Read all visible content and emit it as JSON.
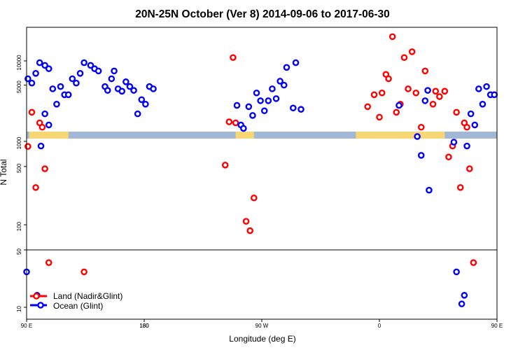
{
  "chart_data": {
    "type": "scatter",
    "title": "20N-25N October (Ver 8)   2014-09-06 to 2017-06-30",
    "xlabel": "Longitude (deg E)",
    "ylabel": "N Total",
    "x_scale": "longitude, 90 E to 180 (wrapping through 180 and 0)",
    "y_scale": "log",
    "x_ticks": [
      {
        "lon": 90,
        "label": "90 E"
      },
      {
        "lon": 180,
        "label": "180"
      },
      {
        "lon": -90,
        "label": "90 W"
      },
      {
        "lon": 0,
        "label": "0"
      },
      {
        "lon": 90,
        "label": "90 E",
        "wrap": true
      },
      {
        "lon": 180,
        "label": "180",
        "wrap": true
      }
    ],
    "y_ticks": [
      {
        "value": 10,
        "label": "10"
      },
      {
        "value": 50,
        "label": "50"
      },
      {
        "value": 100,
        "label": "100"
      },
      {
        "value": 500,
        "label": "500"
      },
      {
        "value": 1000,
        "label": "1000"
      },
      {
        "value": 5000,
        "label": "5000"
      },
      {
        "value": 10000,
        "label": "10000"
      }
    ],
    "colors": {
      "land": "#ff0000",
      "ocean": "#0000ff",
      "map_land": "#f7d773",
      "map_ocean": "#a3b8d4"
    },
    "legend": {
      "position": "bottom-left",
      "entries": [
        {
          "label": "Land (Nadir&Glint)",
          "color": "#ff0000"
        },
        {
          "label": "Ocean (Glint)",
          "color": "#0000ff"
        }
      ]
    },
    "series": [
      {
        "name": "Land (Nadir&Glint)",
        "color": "#ff0000",
        "points": [
          {
            "lon": 91,
            "n": 870
          },
          {
            "lon": 94,
            "n": 2300
          },
          {
            "lon": 97,
            "n": 280
          },
          {
            "lon": 100,
            "n": 1700
          },
          {
            "lon": 102,
            "n": 1500
          },
          {
            "lon": 104,
            "n": 470
          },
          {
            "lon": 107,
            "n": 35
          },
          {
            "lon": 134,
            "n": 27
          },
          {
            "lon": -118,
            "n": 520
          },
          {
            "lon": -115,
            "n": 1750
          },
          {
            "lon": -112,
            "n": 11000
          },
          {
            "lon": -110,
            "n": 1700
          },
          {
            "lon": -102,
            "n": 110
          },
          {
            "lon": -99,
            "n": 85
          },
          {
            "lon": -96,
            "n": 210
          },
          {
            "lon": -9,
            "n": 2700
          },
          {
            "lon": -4,
            "n": 3800
          },
          {
            "lon": 0,
            "n": 2000
          },
          {
            "lon": 2,
            "n": 4000
          },
          {
            "lon": 5,
            "n": 6800
          },
          {
            "lon": 7,
            "n": 6000
          },
          {
            "lon": 10,
            "n": 20000
          },
          {
            "lon": 13,
            "n": 2300
          },
          {
            "lon": 16,
            "n": 2900
          },
          {
            "lon": 19,
            "n": 11000
          },
          {
            "lon": 22,
            "n": 4500
          },
          {
            "lon": 25,
            "n": 13000
          },
          {
            "lon": 28,
            "n": 4000
          },
          {
            "lon": 32,
            "n": 1500
          },
          {
            "lon": 35,
            "n": 7500
          },
          {
            "lon": 41,
            "n": 2900
          },
          {
            "lon": 43,
            "n": 4200
          },
          {
            "lon": 46,
            "n": 3600
          },
          {
            "lon": 50,
            "n": 4200
          },
          {
            "lon": 53,
            "n": 650
          },
          {
            "lon": 56,
            "n": 880
          },
          {
            "lon": 59,
            "n": 2300
          },
          {
            "lon": 62,
            "n": 280
          },
          {
            "lon": 65,
            "n": 1700
          },
          {
            "lon": 67,
            "n": 1500
          },
          {
            "lon": 69,
            "n": 470
          },
          {
            "lon": 72,
            "n": 35
          }
        ]
      },
      {
        "name": "Ocean (Glint)",
        "color": "#0000ff",
        "points": [
          {
            "lon": 90,
            "n": 27
          },
          {
            "lon": 98,
            "n": 14
          },
          {
            "lon": 101,
            "n": 880
          },
          {
            "lon": 104,
            "n": 2200
          },
          {
            "lon": 107,
            "n": 1600
          },
          {
            "lon": 110,
            "n": 4500
          },
          {
            "lon": 113,
            "n": 2900
          },
          {
            "lon": 116,
            "n": 4800
          },
          {
            "lon": 119,
            "n": 3800
          },
          {
            "lon": 122,
            "n": 3800
          },
          {
            "lon": 125,
            "n": 6000
          },
          {
            "lon": 128,
            "n": 5300
          },
          {
            "lon": 131,
            "n": 7000
          },
          {
            "lon": 134,
            "n": 9500
          },
          {
            "lon": 139,
            "n": 8800
          },
          {
            "lon": 142,
            "n": 8000
          },
          {
            "lon": 145,
            "n": 7500
          },
          {
            "lon": 150,
            "n": 4800
          },
          {
            "lon": 152,
            "n": 4300
          },
          {
            "lon": 155,
            "n": 6000
          },
          {
            "lon": 157,
            "n": 7500
          },
          {
            "lon": 160,
            "n": 4500
          },
          {
            "lon": 163,
            "n": 4200
          },
          {
            "lon": 166,
            "n": 5500
          },
          {
            "lon": 169,
            "n": 4800
          },
          {
            "lon": 172,
            "n": 4300
          },
          {
            "lon": 175,
            "n": 2200
          },
          {
            "lon": 178,
            "n": 3300
          },
          {
            "lon": -179,
            "n": 2900
          },
          {
            "lon": -176,
            "n": 4800
          },
          {
            "lon": -173,
            "n": 4500
          },
          {
            "lon": -109,
            "n": 2800
          },
          {
            "lon": -106,
            "n": 1600
          },
          {
            "lon": -104,
            "n": 1450
          },
          {
            "lon": -100,
            "n": 2700
          },
          {
            "lon": -97,
            "n": 2100
          },
          {
            "lon": -94,
            "n": 4000
          },
          {
            "lon": -91,
            "n": 3200
          },
          {
            "lon": -88,
            "n": 2400
          },
          {
            "lon": -85,
            "n": 3200
          },
          {
            "lon": -82,
            "n": 4500
          },
          {
            "lon": -79,
            "n": 3400
          },
          {
            "lon": -76,
            "n": 5600
          },
          {
            "lon": -73,
            "n": 5000
          },
          {
            "lon": -71,
            "n": 8300
          },
          {
            "lon": -66,
            "n": 2600
          },
          {
            "lon": -64,
            "n": 9500
          },
          {
            "lon": -60,
            "n": 2500
          },
          {
            "lon": 15,
            "n": 2800
          },
          {
            "lon": 29,
            "n": 1150
          },
          {
            "lon": 32,
            "n": 680
          },
          {
            "lon": 35,
            "n": 3200
          },
          {
            "lon": 37,
            "n": 4300
          },
          {
            "lon": 38,
            "n": 260
          },
          {
            "lon": 57,
            "n": 980
          },
          {
            "lon": 59,
            "n": 27
          },
          {
            "lon": 63,
            "n": 11
          },
          {
            "lon": 65,
            "n": 14
          },
          {
            "lon": 67,
            "n": 880
          },
          {
            "lon": 70,
            "n": 2200
          },
          {
            "lon": 73,
            "n": 1600
          },
          {
            "lon": 76,
            "n": 4500
          },
          {
            "lon": 79,
            "n": 2900
          },
          {
            "lon": 82,
            "n": 4800
          },
          {
            "lon": 85,
            "n": 3800
          },
          {
            "lon": 88,
            "n": 3800
          },
          {
            "lon": 91,
            "n": 6000
          },
          {
            "lon": 94,
            "n": 5300
          },
          {
            "lon": 97,
            "n": 7000
          },
          {
            "lon": 100,
            "n": 9500
          },
          {
            "lon": 104,
            "n": 8800
          },
          {
            "lon": 107,
            "n": 8000
          }
        ]
      }
    ]
  }
}
